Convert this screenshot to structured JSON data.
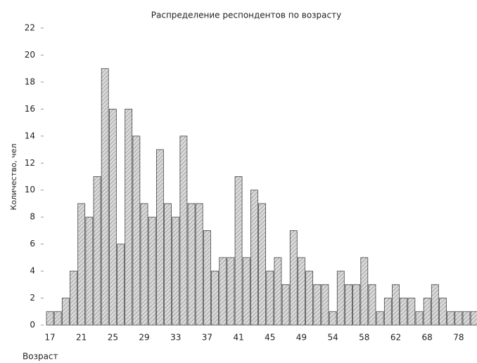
{
  "chart_data": {
    "type": "bar",
    "title": "Распределение респондентов по возрасту",
    "x_label": "Возраст",
    "y_label": "Количество, чел",
    "categories": [
      "17",
      null,
      null,
      null,
      "21",
      null,
      null,
      null,
      "25",
      null,
      null,
      null,
      "29",
      null,
      null,
      null,
      "33",
      null,
      null,
      null,
      "37",
      null,
      null,
      null,
      "41",
      null,
      null,
      null,
      "45",
      null,
      null,
      null,
      "49",
      null,
      null,
      null,
      "54",
      null,
      null,
      null,
      "58",
      null,
      null,
      null,
      "62",
      null,
      null,
      null,
      "68",
      null,
      null,
      null,
      "78",
      null,
      null
    ],
    "values": [
      1,
      1,
      2,
      4,
      9,
      8,
      11,
      19,
      16,
      6,
      16,
      14,
      9,
      8,
      13,
      9,
      8,
      14,
      9,
      9,
      7,
      4,
      5,
      5,
      11,
      5,
      10,
      9,
      4,
      5,
      3,
      7,
      5,
      4,
      3,
      3,
      1,
      4,
      3,
      3,
      5,
      3,
      1,
      2,
      3,
      2,
      2,
      1,
      2,
      3,
      2,
      1,
      1,
      1,
      1
    ],
    "color": "#d9d9d9",
    "ylim": [
      0,
      22
    ],
    "yticks": [
      0,
      2,
      4,
      6,
      8,
      10,
      12,
      14,
      16,
      18,
      20,
      22
    ],
    "grid": false
  }
}
